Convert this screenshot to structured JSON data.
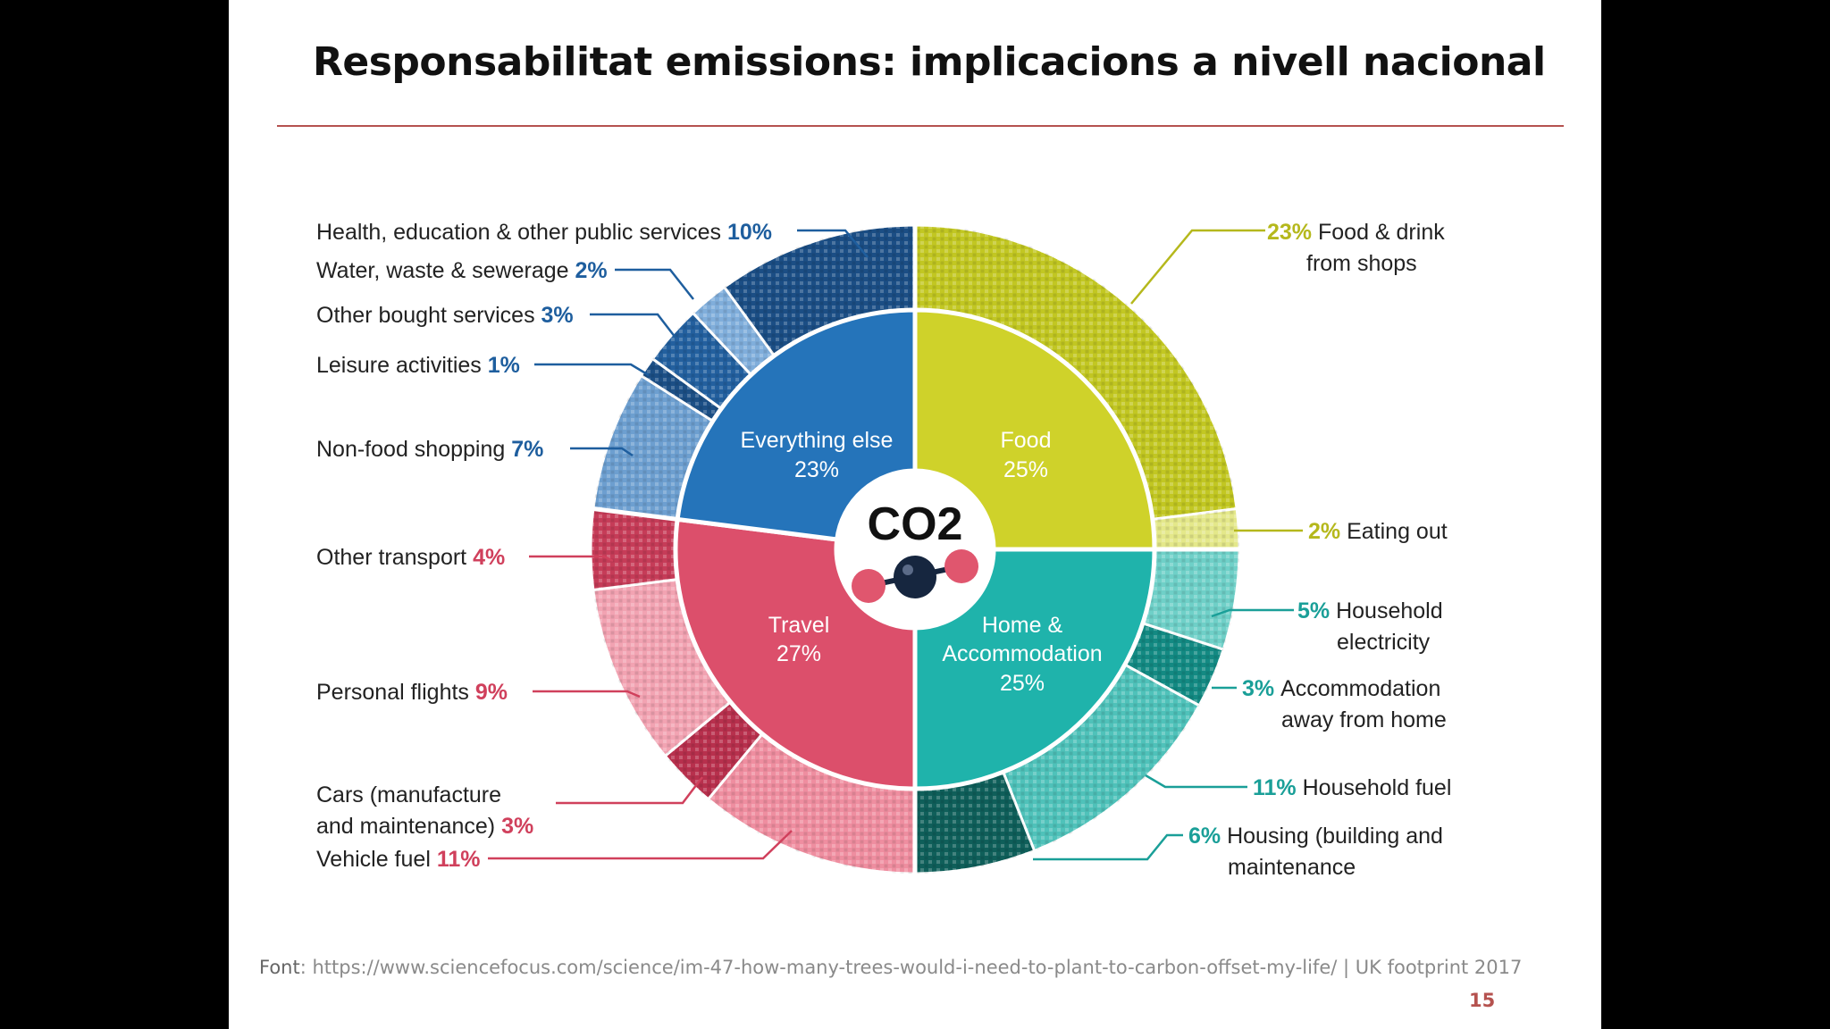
{
  "slide": {
    "title": "Responsabilitat emissions: implicacions a nivell nacional",
    "source_label": "Font",
    "source_text": ": https://www.sciencefocus.com/science/im-47-how-many-trees-would-i-need-to-plant-to-carbon-offset-my-life/ | UK footprint 2017",
    "page_number": "15"
  },
  "colors": {
    "background": "#000000",
    "slide": "#ffffff",
    "rule": "#b5524f",
    "food": "#cfd22a",
    "home": "#1fb3ab",
    "travel": "#dc4f6b",
    "everything_else": "#2574ba",
    "dark_text": "#222222"
  },
  "chart_data": {
    "type": "pie",
    "variant": "sunburst",
    "center_label": "CO2",
    "inner": [
      {
        "label": "Food",
        "value": 25,
        "value_text": "25%",
        "color": "#cfd22a"
      },
      {
        "label": "Home & Accommodation",
        "value": 25,
        "value_text": "25%",
        "color": "#1fb3ab"
      },
      {
        "label": "Travel",
        "value": 27,
        "value_text": "27%",
        "color": "#dc4f6b"
      },
      {
        "label": "Everything else",
        "value": 23,
        "value_text": "23%",
        "color": "#2574ba"
      }
    ],
    "outer": [
      {
        "group": "Food",
        "label": "Food & drink from shops",
        "value": 23,
        "value_text": "23%",
        "color": "#c2c722"
      },
      {
        "group": "Food",
        "label": "Eating out",
        "value": 2,
        "value_text": "2%",
        "color": "#e4e88a"
      },
      {
        "group": "Home & Accommodation",
        "label": "Household electricity",
        "value": 5,
        "value_text": "5%",
        "color": "#6fd0c8"
      },
      {
        "group": "Home & Accommodation",
        "label": "Accommodation away from home",
        "value": 3,
        "value_text": "3%",
        "color": "#138a83"
      },
      {
        "group": "Home & Accommodation",
        "label": "Household fuel",
        "value": 11,
        "value_text": "11%",
        "color": "#4fc2ba"
      },
      {
        "group": "Home & Accommodation",
        "label": "Housing (building and maintenance",
        "value": 6,
        "value_text": "6%",
        "color": "#0f5f5a"
      },
      {
        "group": "Travel",
        "label": "Vehicle fuel",
        "value": 11,
        "value_text": "11%",
        "color": "#ef8ea0"
      },
      {
        "group": "Travel",
        "label": "Cars (manufacture and maintenance)",
        "value": 3,
        "value_text": "3%",
        "color": "#b8304d"
      },
      {
        "group": "Travel",
        "label": "Personal flights",
        "value": 9,
        "value_text": "9%",
        "color": "#f2a3b2"
      },
      {
        "group": "Travel",
        "label": "Other transport",
        "value": 4,
        "value_text": "4%",
        "color": "#c63c58"
      },
      {
        "group": "Everything else",
        "label": "Non-food shopping",
        "value": 7,
        "value_text": "7%",
        "color": "#6d9fd0"
      },
      {
        "group": "Everything else",
        "label": "Leisure activities",
        "value": 1,
        "value_text": "1%",
        "color": "#1c4f86"
      },
      {
        "group": "Everything else",
        "label": "Other bought services",
        "value": 3,
        "value_text": "3%",
        "color": "#23609f"
      },
      {
        "group": "Everything else",
        "label": "Water, waste & sewerage",
        "value": 2,
        "value_text": "2%",
        "color": "#80aedb"
      },
      {
        "group": "Everything else",
        "label": "Health, education & other public services",
        "value": 10,
        "value_text": "10%",
        "color": "#1b4e85"
      }
    ]
  }
}
